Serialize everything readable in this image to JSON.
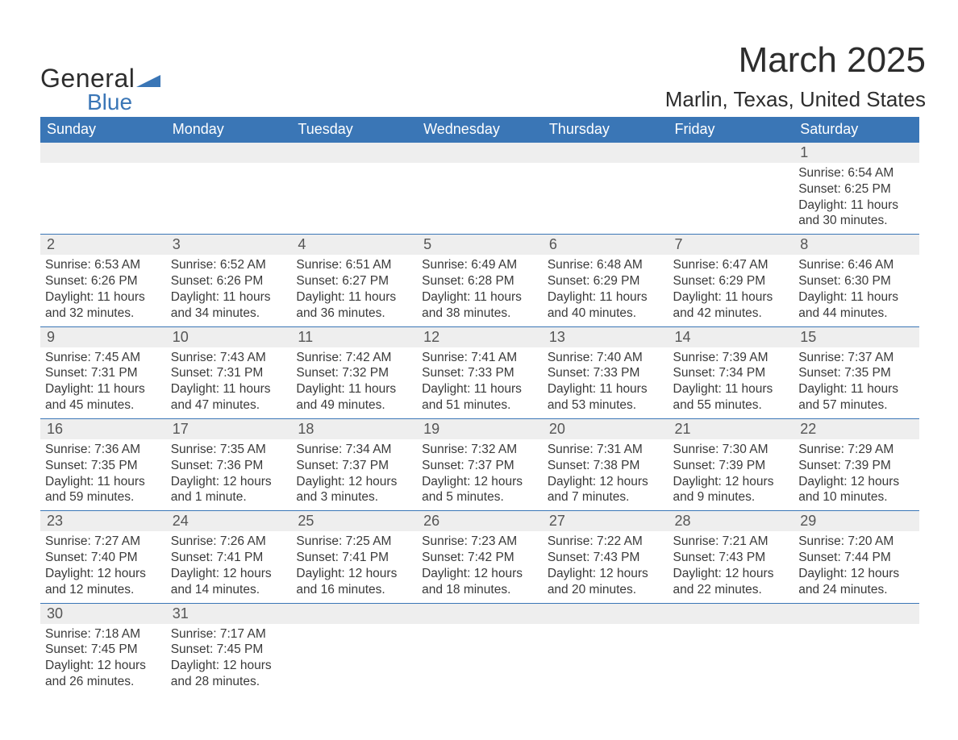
{
  "logo": {
    "word1": "General",
    "word2": "Blue"
  },
  "title": "March 2025",
  "location": "Marlin, Texas, United States",
  "colors": {
    "header_bg": "#3a76b6",
    "header_text": "#ffffff",
    "daynum_bg": "#eeeeee",
    "row_border": "#3a76b6",
    "body_text": "#3a3a3a",
    "logo_blue": "#3a76b6"
  },
  "weekdays": [
    "Sunday",
    "Monday",
    "Tuesday",
    "Wednesday",
    "Thursday",
    "Friday",
    "Saturday"
  ],
  "weeks": [
    [
      null,
      null,
      null,
      null,
      null,
      null,
      {
        "d": "1",
        "sr": "6:54 AM",
        "ss": "6:25 PM",
        "dl": "11 hours and 30 minutes."
      }
    ],
    [
      {
        "d": "2",
        "sr": "6:53 AM",
        "ss": "6:26 PM",
        "dl": "11 hours and 32 minutes."
      },
      {
        "d": "3",
        "sr": "6:52 AM",
        "ss": "6:26 PM",
        "dl": "11 hours and 34 minutes."
      },
      {
        "d": "4",
        "sr": "6:51 AM",
        "ss": "6:27 PM",
        "dl": "11 hours and 36 minutes."
      },
      {
        "d": "5",
        "sr": "6:49 AM",
        "ss": "6:28 PM",
        "dl": "11 hours and 38 minutes."
      },
      {
        "d": "6",
        "sr": "6:48 AM",
        "ss": "6:29 PM",
        "dl": "11 hours and 40 minutes."
      },
      {
        "d": "7",
        "sr": "6:47 AM",
        "ss": "6:29 PM",
        "dl": "11 hours and 42 minutes."
      },
      {
        "d": "8",
        "sr": "6:46 AM",
        "ss": "6:30 PM",
        "dl": "11 hours and 44 minutes."
      }
    ],
    [
      {
        "d": "9",
        "sr": "7:45 AM",
        "ss": "7:31 PM",
        "dl": "11 hours and 45 minutes."
      },
      {
        "d": "10",
        "sr": "7:43 AM",
        "ss": "7:31 PM",
        "dl": "11 hours and 47 minutes."
      },
      {
        "d": "11",
        "sr": "7:42 AM",
        "ss": "7:32 PM",
        "dl": "11 hours and 49 minutes."
      },
      {
        "d": "12",
        "sr": "7:41 AM",
        "ss": "7:33 PM",
        "dl": "11 hours and 51 minutes."
      },
      {
        "d": "13",
        "sr": "7:40 AM",
        "ss": "7:33 PM",
        "dl": "11 hours and 53 minutes."
      },
      {
        "d": "14",
        "sr": "7:39 AM",
        "ss": "7:34 PM",
        "dl": "11 hours and 55 minutes."
      },
      {
        "d": "15",
        "sr": "7:37 AM",
        "ss": "7:35 PM",
        "dl": "11 hours and 57 minutes."
      }
    ],
    [
      {
        "d": "16",
        "sr": "7:36 AM",
        "ss": "7:35 PM",
        "dl": "11 hours and 59 minutes."
      },
      {
        "d": "17",
        "sr": "7:35 AM",
        "ss": "7:36 PM",
        "dl": "12 hours and 1 minute."
      },
      {
        "d": "18",
        "sr": "7:34 AM",
        "ss": "7:37 PM",
        "dl": "12 hours and 3 minutes."
      },
      {
        "d": "19",
        "sr": "7:32 AM",
        "ss": "7:37 PM",
        "dl": "12 hours and 5 minutes."
      },
      {
        "d": "20",
        "sr": "7:31 AM",
        "ss": "7:38 PM",
        "dl": "12 hours and 7 minutes."
      },
      {
        "d": "21",
        "sr": "7:30 AM",
        "ss": "7:39 PM",
        "dl": "12 hours and 9 minutes."
      },
      {
        "d": "22",
        "sr": "7:29 AM",
        "ss": "7:39 PM",
        "dl": "12 hours and 10 minutes."
      }
    ],
    [
      {
        "d": "23",
        "sr": "7:27 AM",
        "ss": "7:40 PM",
        "dl": "12 hours and 12 minutes."
      },
      {
        "d": "24",
        "sr": "7:26 AM",
        "ss": "7:41 PM",
        "dl": "12 hours and 14 minutes."
      },
      {
        "d": "25",
        "sr": "7:25 AM",
        "ss": "7:41 PM",
        "dl": "12 hours and 16 minutes."
      },
      {
        "d": "26",
        "sr": "7:23 AM",
        "ss": "7:42 PM",
        "dl": "12 hours and 18 minutes."
      },
      {
        "d": "27",
        "sr": "7:22 AM",
        "ss": "7:43 PM",
        "dl": "12 hours and 20 minutes."
      },
      {
        "d": "28",
        "sr": "7:21 AM",
        "ss": "7:43 PM",
        "dl": "12 hours and 22 minutes."
      },
      {
        "d": "29",
        "sr": "7:20 AM",
        "ss": "7:44 PM",
        "dl": "12 hours and 24 minutes."
      }
    ],
    [
      {
        "d": "30",
        "sr": "7:18 AM",
        "ss": "7:45 PM",
        "dl": "12 hours and 26 minutes."
      },
      {
        "d": "31",
        "sr": "7:17 AM",
        "ss": "7:45 PM",
        "dl": "12 hours and 28 minutes."
      },
      null,
      null,
      null,
      null,
      null
    ]
  ],
  "labels": {
    "sunrise": "Sunrise:",
    "sunset": "Sunset:",
    "daylight": "Daylight:"
  }
}
